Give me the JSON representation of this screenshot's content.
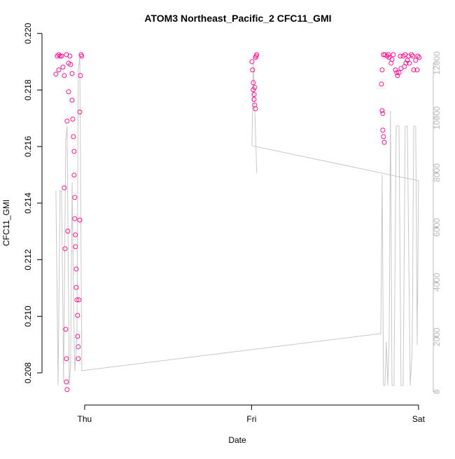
{
  "chart_data": {
    "type": "scatter",
    "title": "ATOM3 Northeast_Pacific_2 CFC11_GMI",
    "xlabel": "Date",
    "ylabel": "CFC11_GMI",
    "xlim": [
      -0.205,
      2.08
    ],
    "xticks": [
      {
        "value": 0,
        "label": "Thu"
      },
      {
        "value": 1,
        "label": "Fri"
      },
      {
        "value": 2,
        "label": "Sat"
      }
    ],
    "ylim": [
      0.20706,
      0.21972
    ],
    "yticks": [
      0.208,
      {
        "value": 0.21,
        "label": "0.210"
      },
      0.212,
      0.214,
      0.216,
      0.218,
      {
        "value": 0.22,
        "label": "0.220"
      }
    ],
    "y2lim": [
      -281,
      12794
    ],
    "y2ticks": [
      0,
      2000,
      4000,
      6000,
      8000,
      10000,
      12000
    ],
    "series": [
      {
        "type": "scatter",
        "color": "#ff1493",
        "x": [
          -0.172,
          -0.155,
          -0.138,
          -0.13,
          -0.122,
          -0.109,
          -0.096,
          -0.088,
          -0.084,
          -0.075,
          -0.155,
          -0.147,
          -0.122,
          -0.117,
          -0.113,
          -0.109,
          -0.109,
          -0.105,
          -0.101,
          -0.105,
          -0.096,
          -0.071,
          -0.067,
          -0.063,
          -0.063,
          -0.059,
          -0.059,
          -0.055,
          -0.055,
          -0.05,
          -0.05,
          -0.046,
          -0.042,
          -0.042,
          -0.038,
          -0.038,
          -0.034,
          -0.029,
          -0.029,
          -0.025,
          -0.021,
          -0.017,
          -0.164,
          -0.075,
          1.002,
          1.006,
          1.01,
          1.01,
          1.015,
          1.015,
          1.019,
          1.023,
          1.023,
          1.031,
          1.027,
          1.019,
          1.778,
          1.782,
          1.786,
          1.786,
          1.79,
          1.795,
          1.782,
          1.79,
          1.799,
          1.811,
          1.824,
          1.836,
          1.849,
          1.862,
          1.874,
          1.883,
          1.895,
          1.908,
          1.92,
          1.933,
          1.945,
          1.958,
          1.971,
          1.983,
          1.996,
          2.004,
          1.82,
          1.841,
          1.891,
          1.925,
          1.966,
          1.992,
          1.87,
          1.916,
          1.941
        ],
        "values": [
          0.21856,
          0.21925,
          0.2192,
          0.21881,
          0.21851,
          0.21925,
          0.21895,
          0.2192,
          0.2189,
          0.21858,
          0.21871,
          0.2192,
          0.21454,
          0.21239,
          0.20954,
          0.2085,
          0.20768,
          0.20741,
          0.21301,
          0.2169,
          0.21794,
          0.21697,
          0.21635,
          0.21583,
          0.21499,
          0.2142,
          0.21345,
          0.21288,
          0.21246,
          0.21167,
          0.21102,
          0.21058,
          0.21003,
          0.20929,
          0.20892,
          0.2085,
          0.21058,
          0.2134,
          0.21722,
          0.21851,
          0.21925,
          0.2192,
          0.2192,
          0.21764,
          0.219,
          0.21871,
          0.21826,
          0.21801,
          0.21784,
          0.21767,
          0.21747,
          0.21734,
          0.21915,
          0.21925,
          0.2192,
          0.21809,
          0.21821,
          0.21727,
          0.21717,
          0.21658,
          0.21635,
          0.21615,
          0.21871,
          0.21925,
          0.21925,
          0.2192,
          0.21915,
          0.21895,
          0.21925,
          0.21871,
          0.21851,
          0.21861,
          0.21876,
          0.2192,
          0.21925,
          0.21905,
          0.21895,
          0.21925,
          0.21871,
          0.21905,
          0.2192,
          0.21915,
          0.21925,
          0.21908,
          0.2192,
          0.21895,
          0.2192,
          0.21871,
          0.21861,
          0.21883,
          0.2192
        ]
      },
      {
        "type": "line",
        "axis": "y2",
        "color": "#c8c8c8",
        "x": [
          -0.172,
          -0.159,
          -0.147,
          -0.138,
          -0.126,
          -0.113,
          -0.105,
          -0.092,
          -0.084,
          -0.075,
          -0.067,
          -0.059,
          -0.046,
          -0.038,
          -0.029,
          -0.017,
          1.774,
          1.782,
          1.79,
          1.799,
          1.807,
          1.816,
          1.824,
          1.832,
          1.841,
          1.853,
          1.866,
          1.883,
          1.895,
          1.908,
          1.92,
          1.933,
          1.95,
          1.962,
          1.971,
          1.983,
          1.992,
          2.0,
          1.002,
          1.01,
          1.031
        ],
        "values": [
          7344,
          230,
          7344,
          7344,
          358,
          9186,
          9698,
          230,
          998,
          7651,
          3557,
          742,
          2021,
          11745,
          12257,
          768,
          2124,
          7907,
          230,
          230,
          1817,
          230,
          1817,
          10261,
          230,
          230,
          9698,
          9698,
          230,
          230,
          9698,
          9698,
          230,
          1510,
          9698,
          9698,
          1689,
          7702,
          8982,
          12001,
          7984
        ]
      }
    ]
  }
}
